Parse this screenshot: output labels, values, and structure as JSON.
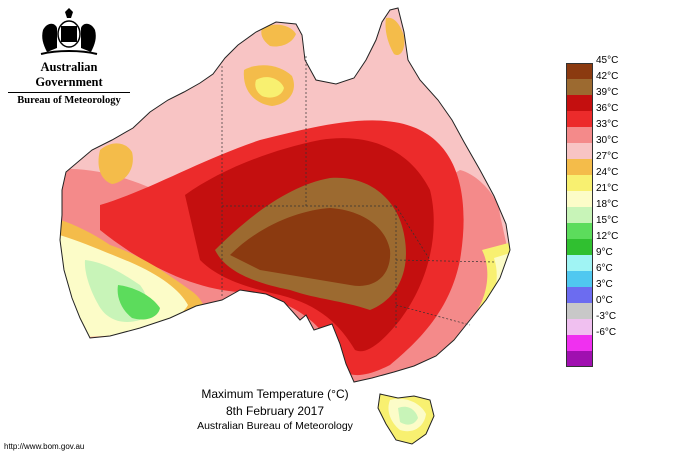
{
  "header": {
    "government": "Australian Government",
    "bureau": "Bureau of Meteorology"
  },
  "caption": {
    "title": "Maximum Temperature (°C)",
    "date": "8th February 2017",
    "organisation": "Australian Bureau of Meteorology"
  },
  "footer": {
    "url": "http://www.bom.gov.au"
  },
  "legend": [
    {
      "label": "45°C",
      "color": "#8b3a10"
    },
    {
      "label": "42°C",
      "color": "#9c6a30"
    },
    {
      "label": "39°C",
      "color": "#c40f0f"
    },
    {
      "label": "36°C",
      "color": "#ec2b2b"
    },
    {
      "label": "33°C",
      "color": "#f48a8a"
    },
    {
      "label": "30°C",
      "color": "#f8c4c4"
    },
    {
      "label": "27°C",
      "color": "#f4bc4a"
    },
    {
      "label": "24°C",
      "color": "#f8f070"
    },
    {
      "label": "21°C",
      "color": "#fcfcc8"
    },
    {
      "label": "18°C",
      "color": "#c8f4b8"
    },
    {
      "label": "15°C",
      "color": "#5cdc5c"
    },
    {
      "label": "12°C",
      "color": "#30c030"
    },
    {
      "label": "9°C",
      "color": "#a0f4f4"
    },
    {
      "label": "6°C",
      "color": "#50c8f0"
    },
    {
      "label": "3°C",
      "color": "#6c6cf0"
    },
    {
      "label": "0°C",
      "color": "#c8c8c8"
    },
    {
      "label": "-3°C",
      "color": "#f0c0f0"
    },
    {
      "label": "-6°C",
      "color": "#f030f0"
    },
    {
      "label": "",
      "color": "#a010b0"
    }
  ]
}
